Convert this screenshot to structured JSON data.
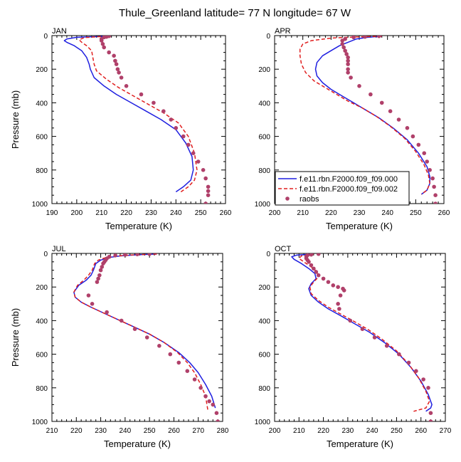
{
  "figure_title": "Thule_Greenland  latitude= 77 N longitude= 67 W",
  "legend": {
    "entries": [
      {
        "label": "f.e11.rbn.F2000.f09_f09.000",
        "style": "solid",
        "color": "#1f1fe0"
      },
      {
        "label": "f.e11.rbn.F2000.f09_f09.002",
        "style": "dashed",
        "color": "#e01f1f"
      },
      {
        "label": "raobs",
        "style": "marker",
        "color": "#b0406a"
      }
    ]
  },
  "chart_data": [
    {
      "type": "line",
      "panel_label": "JAN",
      "xlabel": "Temperature (K)",
      "ylabel": "Pressure (mb)",
      "xlim": [
        190,
        260
      ],
      "ylim": [
        1000,
        0
      ],
      "xticks": [
        190,
        200,
        210,
        220,
        230,
        240,
        250,
        260
      ],
      "yticks": [
        0,
        200,
        400,
        600,
        800,
        1000
      ],
      "series": [
        {
          "name": "f.e11.rbn.F2000.f09_f09.000",
          "x": [
            212,
            200,
            196,
            195,
            196,
            199,
            202,
            204,
            205,
            205.5,
            207,
            211,
            216,
            222,
            228,
            234,
            240,
            244,
            246.5,
            247,
            246,
            243,
            240
          ],
          "y": [
            4,
            10,
            20,
            30,
            40,
            60,
            90,
            130,
            170,
            200,
            250,
            300,
            350,
            400,
            450,
            500,
            560,
            640,
            720,
            800,
            860,
            900,
            930
          ]
        },
        {
          "name": "f.e11.rbn.F2000.f09_f09.002",
          "x": [
            212,
            203,
            201,
            202,
            204,
            206,
            206.5,
            207,
            208,
            212,
            217,
            223,
            229,
            235,
            241,
            245,
            247.5,
            248.5,
            247.5,
            245,
            242
          ],
          "y": [
            4,
            12,
            25,
            40,
            60,
            90,
            130,
            170,
            210,
            260,
            310,
            360,
            410,
            460,
            520,
            600,
            700,
            800,
            860,
            900,
            930
          ]
        },
        {
          "name": "raobs",
          "x": [
            213,
            212,
            211,
            210,
            210,
            210.5,
            211,
            213,
            215,
            215.5,
            216,
            216.5,
            217,
            218,
            220,
            226,
            231,
            235,
            238,
            240,
            243,
            245,
            247,
            249,
            251,
            252,
            253,
            253,
            253,
            252
          ],
          "y": [
            3,
            7,
            10,
            20,
            30,
            50,
            70,
            100,
            120,
            150,
            170,
            200,
            220,
            250,
            300,
            350,
            400,
            450,
            500,
            550,
            600,
            650,
            700,
            750,
            800,
            850,
            900,
            925,
            950,
            1000
          ]
        }
      ]
    },
    {
      "type": "line",
      "panel_label": "APR",
      "xlabel": "Temperature (K)",
      "ylabel": "",
      "xlim": [
        200,
        260
      ],
      "ylim": [
        1000,
        0
      ],
      "xticks": [
        200,
        210,
        220,
        230,
        240,
        250,
        260
      ],
      "yticks": [
        0,
        200,
        400,
        600,
        800,
        1000
      ],
      "series": [
        {
          "name": "f.e11.rbn.F2000.f09_f09.000",
          "x": [
            238,
            233,
            229,
            226,
            223,
            220,
            217,
            215,
            214.5,
            215,
            217,
            220,
            224,
            228,
            232,
            237,
            242,
            247,
            251,
            254,
            255,
            255,
            254,
            252
          ],
          "y": [
            4,
            10,
            20,
            40,
            60,
            90,
            120,
            160,
            200,
            240,
            280,
            320,
            360,
            400,
            440,
            490,
            550,
            620,
            700,
            780,
            840,
            880,
            920,
            945
          ]
        },
        {
          "name": "f.e11.rbn.F2000.f09_f09.002",
          "x": [
            238,
            229,
            220,
            213,
            210,
            209,
            209,
            209.5,
            211,
            214,
            218,
            222,
            226,
            231,
            236,
            241,
            246,
            250,
            253,
            254.5,
            255,
            254,
            252
          ],
          "y": [
            4,
            8,
            15,
            30,
            50,
            80,
            120,
            170,
            220,
            270,
            310,
            350,
            390,
            430,
            480,
            540,
            610,
            690,
            770,
            830,
            880,
            920,
            945
          ]
        },
        {
          "name": "raobs",
          "x": [
            237,
            232,
            228,
            225,
            224,
            224,
            224.5,
            225,
            225.5,
            226,
            226,
            226,
            226,
            226,
            227,
            230,
            234,
            238,
            241,
            244,
            247,
            249,
            251,
            253,
            254,
            255,
            256,
            256.5,
            257,
            257
          ],
          "y": [
            3,
            7,
            10,
            20,
            30,
            50,
            70,
            90,
            110,
            130,
            150,
            170,
            200,
            220,
            250,
            300,
            350,
            400,
            450,
            500,
            550,
            600,
            650,
            700,
            750,
            800,
            850,
            900,
            950,
            1000
          ]
        }
      ]
    },
    {
      "type": "line",
      "panel_label": "JUL",
      "xlabel": "Temperature (K)",
      "ylabel": "Pressure (mb)",
      "xlim": [
        210,
        280
      ],
      "ylim": [
        1000,
        0
      ],
      "xticks": [
        210,
        220,
        230,
        240,
        250,
        260,
        270,
        280
      ],
      "yticks": [
        0,
        200,
        400,
        600,
        800,
        1000
      ],
      "series": [
        {
          "name": "f.e11.rbn.F2000.f09_f09.000",
          "x": [
            253,
            245,
            238,
            233,
            230,
            228,
            227.5,
            227,
            226,
            224,
            221,
            219,
            219.5,
            222,
            226,
            232,
            238,
            244,
            250,
            256,
            262,
            266.5,
            270,
            273,
            275.5,
            277
          ],
          "y": [
            4,
            8,
            15,
            25,
            40,
            60,
            80,
            100,
            130,
            160,
            190,
            230,
            260,
            290,
            320,
            360,
            400,
            440,
            480,
            530,
            590,
            650,
            710,
            780,
            850,
            920
          ]
        },
        {
          "name": "f.e11.rbn.F2000.f09_f09.002",
          "x": [
            253,
            244,
            237,
            232,
            229,
            227.5,
            227,
            226.5,
            225,
            223,
            220.5,
            219,
            219.5,
            222,
            226,
            232,
            238,
            244,
            250,
            256,
            261.5,
            265.5,
            268.5,
            271,
            273,
            274
          ],
          "y": [
            4,
            8,
            15,
            25,
            40,
            60,
            80,
            100,
            130,
            160,
            190,
            230,
            260,
            290,
            320,
            360,
            400,
            440,
            480,
            530,
            590,
            650,
            710,
            780,
            850,
            940
          ]
        },
        {
          "name": "raobs",
          "x": [
            250,
            245,
            240,
            236,
            233.5,
            232.5,
            232,
            231.5,
            231,
            230.5,
            230,
            229.5,
            229,
            228.5,
            225,
            226.5,
            232.5,
            238.5,
            244,
            249,
            254,
            258.5,
            262,
            265.5,
            268.5,
            271,
            273,
            274.5,
            276,
            277.5,
            278
          ],
          "y": [
            3,
            5,
            8,
            12,
            20,
            30,
            40,
            50,
            60,
            80,
            100,
            130,
            150,
            170,
            250,
            300,
            350,
            400,
            450,
            500,
            550,
            600,
            650,
            700,
            750,
            800,
            850,
            880,
            900,
            950,
            1000
          ]
        }
      ]
    },
    {
      "type": "line",
      "panel_label": "OCT",
      "xlabel": "Temperature (K)",
      "ylabel": "",
      "xlim": [
        200,
        270
      ],
      "ylim": [
        1000,
        0
      ],
      "xticks": [
        200,
        210,
        220,
        230,
        240,
        250,
        260,
        270
      ],
      "yticks": [
        0,
        200,
        400,
        600,
        800,
        1000
      ],
      "series": [
        {
          "name": "f.e11.rbn.F2000.f09_f09.000",
          "x": [
            216,
            209,
            207,
            208,
            211,
            214,
            216.5,
            217,
            215,
            214,
            215,
            218,
            222,
            227,
            233,
            239,
            245,
            251,
            256,
            260,
            263,
            264.5,
            264,
            262
          ],
          "y": [
            4,
            10,
            20,
            35,
            60,
            90,
            120,
            150,
            180,
            210,
            250,
            290,
            330,
            370,
            420,
            470,
            530,
            600,
            680,
            760,
            840,
            900,
            920,
            940
          ]
        },
        {
          "name": "f.e11.rbn.F2000.f09_f09.002",
          "x": [
            216,
            211,
            210,
            212,
            215,
            217.5,
            218,
            216,
            214.5,
            215,
            218,
            222,
            227,
            232,
            238,
            244,
            250,
            255,
            259,
            262,
            263.5,
            262,
            257
          ],
          "y": [
            4,
            15,
            30,
            50,
            80,
            110,
            140,
            170,
            200,
            240,
            280,
            320,
            360,
            400,
            450,
            510,
            580,
            660,
            740,
            820,
            880,
            920,
            940
          ]
        },
        {
          "name": "raobs",
          "x": [
            218,
            215,
            213.5,
            213,
            213,
            213.5,
            214,
            215,
            216,
            217,
            218,
            220,
            222,
            224,
            226,
            228,
            228.5,
            227,
            226,
            226.5,
            231,
            236,
            241,
            246,
            251,
            255,
            258,
            261,
            263,
            264,
            264
          ],
          "y": [
            3,
            7,
            10,
            20,
            30,
            40,
            50,
            70,
            90,
            110,
            130,
            150,
            170,
            190,
            200,
            210,
            220,
            250,
            300,
            330,
            400,
            450,
            500,
            550,
            600,
            650,
            700,
            750,
            800,
            950,
            1000
          ]
        }
      ]
    }
  ]
}
